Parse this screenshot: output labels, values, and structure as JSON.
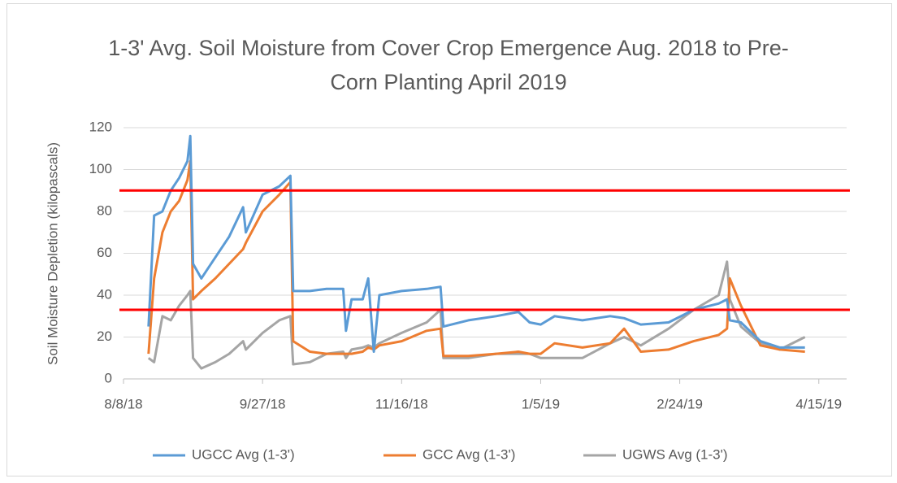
{
  "chart_data": {
    "type": "line",
    "title": "1-3' Avg. Soil Moisture from Cover Crop Emergence Aug. 2018 to Pre-Corn Planting April 2019",
    "y_label": "Soil Moisture Depletion (kilopascals)",
    "x": [
      "2018-08-17",
      "2018-08-19",
      "2018-08-22",
      "2018-08-25",
      "2018-08-28",
      "2018-08-31",
      "2018-09-01",
      "2018-09-02",
      "2018-09-05",
      "2018-09-10",
      "2018-09-15",
      "2018-09-20",
      "2018-09-21",
      "2018-09-27",
      "2018-10-03",
      "2018-10-07",
      "2018-10-08",
      "2018-10-14",
      "2018-10-20",
      "2018-10-26",
      "2018-10-27",
      "2018-10-29",
      "2018-11-02",
      "2018-11-04",
      "2018-11-06",
      "2018-11-08",
      "2018-11-16",
      "2018-11-25",
      "2018-11-30",
      "2018-12-01",
      "2018-12-10",
      "2018-12-20",
      "2018-12-28",
      "2019-01-01",
      "2019-01-05",
      "2019-01-10",
      "2019-01-20",
      "2019-01-30",
      "2019-02-04",
      "2019-02-10",
      "2019-02-20",
      "2019-03-01",
      "2019-03-10",
      "2019-03-13",
      "2019-03-14",
      "2019-03-18",
      "2019-03-25",
      "2019-04-01",
      "2019-04-10"
    ],
    "series": [
      {
        "name": "UGCC Avg (1-3')",
        "color": "#5b9bd5",
        "values": [
          25,
          78,
          80,
          90,
          96,
          104,
          116,
          55,
          48,
          58,
          68,
          82,
          70,
          88,
          92,
          97,
          42,
          42,
          43,
          43,
          23,
          38,
          38,
          48,
          13,
          40,
          42,
          43,
          44,
          25,
          28,
          30,
          32,
          27,
          26,
          30,
          28,
          30,
          29,
          26,
          27,
          33,
          36,
          38,
          28,
          27,
          18,
          15,
          15
        ]
      },
      {
        "name": "GCC Avg (1-3')",
        "color": "#ed7d31",
        "values": [
          12,
          48,
          70,
          80,
          85,
          95,
          104,
          38,
          42,
          48,
          55,
          62,
          65,
          80,
          88,
          94,
          18,
          13,
          12,
          12,
          12,
          12,
          13,
          15,
          14,
          16,
          18,
          23,
          24,
          11,
          11,
          12,
          13,
          12,
          12,
          17,
          15,
          17,
          24,
          13,
          14,
          18,
          21,
          24,
          48,
          35,
          16,
          14,
          13
        ]
      },
      {
        "name": "UGWS Avg (1-3')",
        "color": "#a5a5a5",
        "values": [
          10,
          8,
          30,
          28,
          35,
          40,
          42,
          10,
          5,
          8,
          12,
          18,
          14,
          22,
          28,
          30,
          7,
          8,
          12,
          13,
          10,
          14,
          15,
          16,
          15,
          17,
          22,
          27,
          33,
          10,
          10,
          12,
          12,
          12,
          10,
          10,
          10,
          17,
          20,
          16,
          24,
          33,
          40,
          56,
          38,
          25,
          17,
          14,
          20
        ]
      }
    ],
    "reference_lines": [
      90,
      33
    ],
    "reference_color": "#ff0000",
    "xlim": [
      "2018-08-08",
      "2019-04-25"
    ],
    "xticks": [
      {
        "value": "2018-08-08",
        "label": "8/8/18"
      },
      {
        "value": "2018-09-27",
        "label": "9/27/18"
      },
      {
        "value": "2018-11-16",
        "label": "11/16/18"
      },
      {
        "value": "2019-01-05",
        "label": "1/5/19"
      },
      {
        "value": "2019-02-24",
        "label": "2/24/19"
      },
      {
        "value": "2019-04-15",
        "label": "4/15/19"
      }
    ],
    "ylim": [
      0,
      120
    ],
    "yticks": [
      0,
      20,
      40,
      60,
      80,
      100,
      120
    ],
    "grid": true,
    "legend": "bottom"
  }
}
